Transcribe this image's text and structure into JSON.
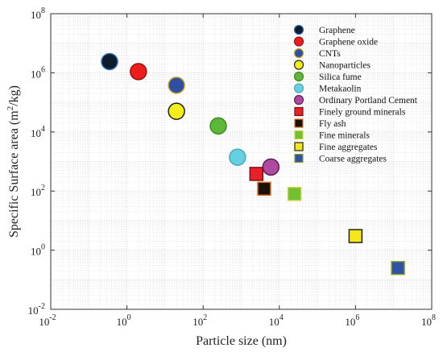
{
  "chart_data": {
    "type": "scatter",
    "title": "",
    "xlabel": "Particle size (nm)",
    "ylabel_main": "Specific Surface area (m",
    "ylabel_sup": "2",
    "ylabel_tail": "/kg)",
    "xscale": "log",
    "yscale": "log",
    "xlim": [
      0.01,
      100000000
    ],
    "ylim": [
      0.01,
      100000000
    ],
    "grid": true,
    "legend_position": "top-right",
    "x_ticks": [
      {
        "base": "10",
        "exp": "-2",
        "value": 0.01
      },
      {
        "base": "10",
        "exp": "0",
        "value": 1
      },
      {
        "base": "10",
        "exp": "2",
        "value": 100
      },
      {
        "base": "10",
        "exp": "4",
        "value": 10000
      },
      {
        "base": "10",
        "exp": "6",
        "value": 1000000
      },
      {
        "base": "10",
        "exp": "8",
        "value": 100000000
      }
    ],
    "y_ticks": [
      {
        "base": "10",
        "exp": "-2",
        "value": 0.01
      },
      {
        "base": "10",
        "exp": "0",
        "value": 1
      },
      {
        "base": "10",
        "exp": "2",
        "value": 100
      },
      {
        "base": "10",
        "exp": "4",
        "value": 10000
      },
      {
        "base": "10",
        "exp": "6",
        "value": 1000000
      },
      {
        "base": "10",
        "exp": "8",
        "value": 100000000
      }
    ],
    "series": [
      {
        "name": "Graphene",
        "marker": "circle",
        "color": "#0d1b2a",
        "edge": "#2c6fb7",
        "x": 0.35,
        "y": 2400000
      },
      {
        "name": "Graphene oxide",
        "marker": "circle",
        "color": "#ee1c1c",
        "edge": "#9a1010",
        "x": 2,
        "y": 1100000
      },
      {
        "name": "CNTs",
        "marker": "circle",
        "color": "#2f4fa2",
        "edge": "#c8a020",
        "x": 20,
        "y": 380000
      },
      {
        "name": "Nanoparticles",
        "marker": "circle",
        "color": "#f5ed1a",
        "edge": "#222222",
        "x": 20,
        "y": 50000
      },
      {
        "name": "Silica fume",
        "marker": "circle",
        "color": "#5db83a",
        "edge": "#3d8a22",
        "x": 250,
        "y": 16000
      },
      {
        "name": "Metakaolin",
        "marker": "circle",
        "color": "#66cfe0",
        "edge": "#4aa9bb",
        "x": 800,
        "y": 1400
      },
      {
        "name": "Ordinary Portland Cement",
        "marker": "circle",
        "color": "#b04aa0",
        "edge": "#5a1f52",
        "x": 6000,
        "y": 650
      },
      {
        "name": "Finely ground minerals",
        "marker": "square",
        "color": "#e8202a",
        "edge": "#7a1015",
        "x": 2500,
        "y": 380
      },
      {
        "name": "Fly ash",
        "marker": "square",
        "color": "#1a1208",
        "edge": "#e07020",
        "x": 4000,
        "y": 120
      },
      {
        "name": "Fine minerals",
        "marker": "square",
        "color": "#70c032",
        "edge": "#c8d040",
        "x": 25000,
        "y": 80
      },
      {
        "name": "Fine aggregates",
        "marker": "square",
        "color": "#f5e61a",
        "edge": "#222222",
        "x": 1000000,
        "y": 3
      },
      {
        "name": "Coarse aggregates",
        "marker": "square",
        "color": "#2f52a8",
        "edge": "#8aa020",
        "x": 13000000,
        "y": 0.25
      }
    ]
  }
}
